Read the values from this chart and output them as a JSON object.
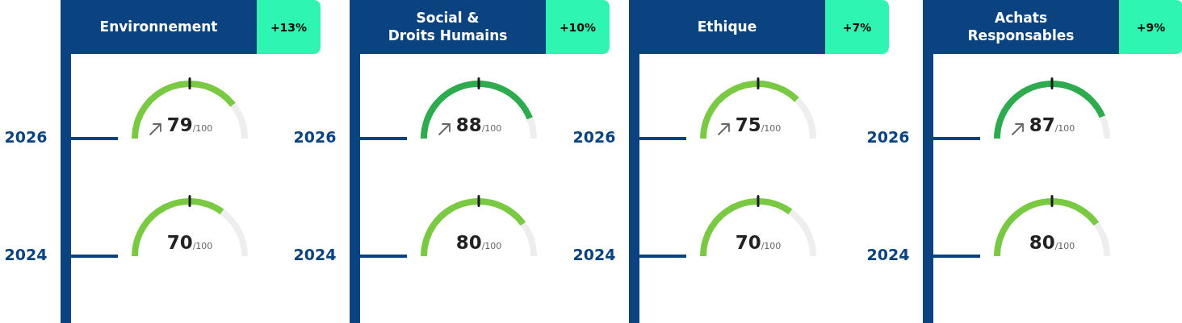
{
  "chart_data": [
    {
      "type": "donut",
      "title": "Environnement",
      "subtitle": "+13%",
      "annotations": [
        "2026"
      ],
      "categories": [
        null,
        null
      ],
      "values": [
        79,
        21
      ],
      "colors": [
        "#7ac943",
        "#eeeeee"
      ],
      "value_labels": [
        "79/100",
        null
      ]
    },
    {
      "type": "donut",
      "annotations": [
        "2024"
      ],
      "categories": [
        null,
        null
      ],
      "values": [
        70,
        30
      ],
      "colors": [
        "#7ac943",
        "#eeeeee"
      ],
      "value_labels": [
        "70/100",
        null
      ]
    },
    {
      "type": "donut",
      "title": "Social &\nDroits Humains",
      "subtitle": "+10%",
      "annotations": [
        "2026"
      ],
      "categories": [
        null,
        null
      ],
      "values": [
        88,
        12
      ],
      "colors": [
        "#2eaa4f",
        "#eeeeee"
      ],
      "value_labels": [
        "88/100",
        null
      ]
    },
    {
      "type": "donut",
      "annotations": [
        "2024"
      ],
      "categories": [
        null,
        null
      ],
      "values": [
        80,
        20
      ],
      "colors": [
        "#7ac943",
        "#eeeeee"
      ],
      "value_labels": [
        "80/100",
        null
      ]
    },
    {
      "type": "donut",
      "title": "Ethique",
      "subtitle": "+7%",
      "annotations": [
        "2026"
      ],
      "categories": [
        null,
        null
      ],
      "values": [
        75,
        25
      ],
      "colors": [
        "#7ac943",
        "#eeeeee"
      ],
      "value_labels": [
        "75/100",
        null
      ]
    },
    {
      "type": "donut",
      "annotations": [
        "2024"
      ],
      "categories": [
        null,
        null
      ],
      "values": [
        70,
        30
      ],
      "colors": [
        "#7ac943",
        "#eeeeee"
      ],
      "value_labels": [
        "70/100",
        null
      ]
    },
    {
      "type": "donut",
      "title": "Achats\nResponsables",
      "subtitle": "+9%",
      "annotations": [
        "2026"
      ],
      "categories": [
        null,
        null
      ],
      "values": [
        87,
        13
      ],
      "colors": [
        "#2eaa4f",
        "#eeeeee"
      ],
      "value_labels": [
        "87/100",
        null
      ]
    },
    {
      "type": "donut",
      "annotations": [
        "2024"
      ],
      "categories": [
        null,
        null
      ],
      "values": [
        80,
        20
      ],
      "colors": [
        "#7ac943",
        "#eeeeee"
      ],
      "value_labels": [
        "80/100",
        null
      ]
    }
  ]
}
